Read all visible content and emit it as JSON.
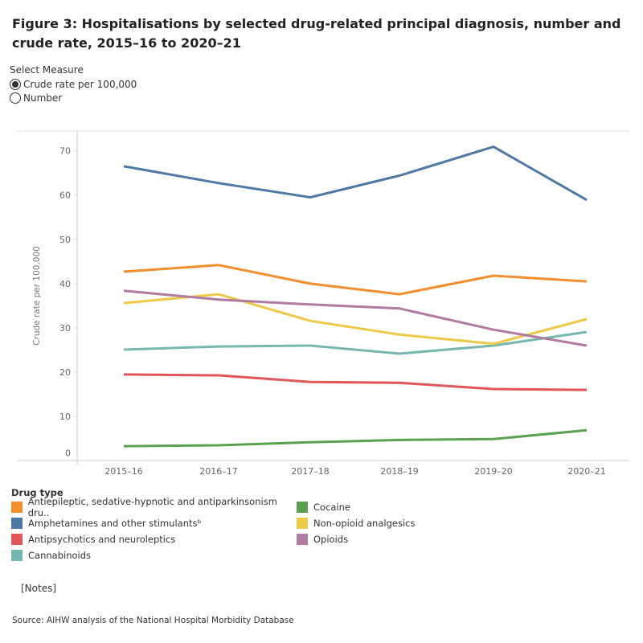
{
  "title": "Figure 3: Hospitalisations by selected drug-related principal diagnosis, number and crude rate, 2015–16 to 2020–21",
  "measure": {
    "label": "Select Measure",
    "options": [
      {
        "label": "Crude rate per 100,000",
        "selected": true
      },
      {
        "label": "Number",
        "selected": false
      }
    ]
  },
  "chart_data": {
    "type": "line",
    "ylabel": "Crude rate per 100,000",
    "ylim": [
      0,
      70
    ],
    "yticks": [
      "0",
      "10",
      "20",
      "30",
      "40",
      "50",
      "60",
      "70"
    ],
    "categories": [
      "2015–16",
      "2016–17",
      "2017–18",
      "2018–19",
      "2019–20",
      "2020–21"
    ],
    "grid": false,
    "legend_title": "Drug type",
    "legend_position": "bottom",
    "series": [
      {
        "name": "Antiepileptic, sedative-hypnotic and antiparkinsonism dru..",
        "color": "#F28E2B",
        "values": [
          42.7,
          44.2,
          40.0,
          37.6,
          41.8,
          40.5
        ]
      },
      {
        "name": "Amphetamines and other stimulantsᵇ",
        "color": "#4E79A7",
        "values": [
          66.5,
          62.7,
          59.5,
          64.4,
          70.9,
          58.9
        ]
      },
      {
        "name": "Antipsychotics and neuroleptics",
        "color": "#E15759",
        "values": [
          19.5,
          19.3,
          17.8,
          17.6,
          16.2,
          16.0
        ]
      },
      {
        "name": "Cannabinoids",
        "color": "#76B7B2",
        "values": [
          25.1,
          25.8,
          26.0,
          24.2,
          26.0,
          29.1
        ]
      },
      {
        "name": "Cocaine",
        "color": "#59A14F",
        "values": [
          3.3,
          3.5,
          4.2,
          4.7,
          4.9,
          6.9
        ]
      },
      {
        "name": "Non-opioid analgesics",
        "color": "#EDC948",
        "values": [
          35.6,
          37.6,
          31.6,
          28.5,
          26.4,
          32.0
        ]
      },
      {
        "name": "Opioids",
        "color": "#B07AA1",
        "values": [
          38.4,
          36.4,
          35.3,
          34.4,
          29.6,
          26.0
        ]
      }
    ]
  },
  "notes_label": "[Notes]",
  "source": "Source: AIHW analysis of the National Hospital Morbidity Database"
}
